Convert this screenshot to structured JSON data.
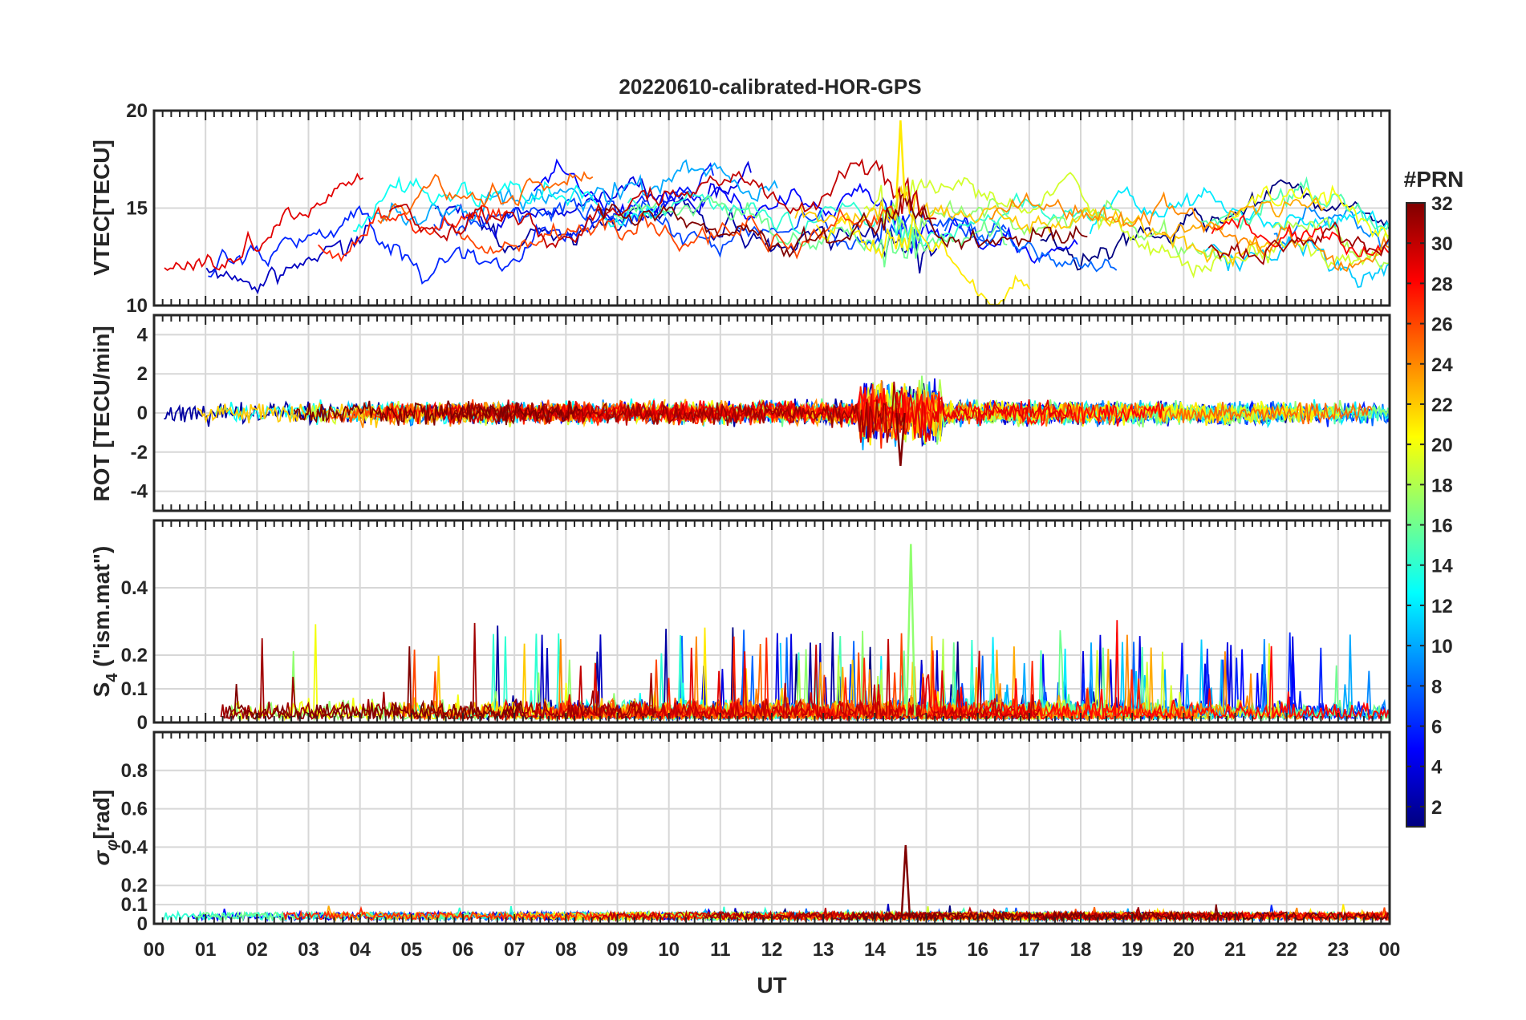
{
  "figure": {
    "title": "20220610-calibrated-HOR-GPS",
    "xlabel": "UT",
    "colorbar": {
      "label": "#PRN",
      "min": 1,
      "max": 32,
      "ticks": [
        "2",
        "4",
        "6",
        "8",
        "10",
        "12",
        "14",
        "16",
        "18",
        "20",
        "22",
        "24",
        "26",
        "28",
        "30",
        "32"
      ],
      "colormap": "jet"
    }
  },
  "chart_data": [
    {
      "type": "line",
      "panel": "vtec",
      "title": "20220610-calibrated-HOR-GPS",
      "ylabel": "VTEC[TECU]",
      "xlabel": "",
      "xlim": [
        0,
        24
      ],
      "ylim": [
        10,
        20
      ],
      "yticks": [
        "10",
        "15",
        "20"
      ],
      "grid": true,
      "series_summary": {
        "prn_count": 32,
        "baseline_profile_x": [
          0,
          2,
          4,
          6,
          8,
          10,
          12,
          14,
          16,
          18,
          20,
          22,
          24
        ],
        "baseline_profile_y": [
          11.5,
          12.5,
          14.0,
          14.5,
          15.0,
          15.0,
          15.0,
          14.8,
          14.0,
          14.0,
          13.5,
          13.5,
          13.0
        ],
        "peak": {
          "x": 14.5,
          "y": 19.5
        }
      }
    },
    {
      "type": "line",
      "panel": "rot",
      "ylabel": "ROT [TECU/min]",
      "xlabel": "",
      "xlim": [
        0,
        24
      ],
      "ylim": [
        -5,
        5
      ],
      "yticks": [
        "-4",
        "-2",
        "0",
        "2",
        "4"
      ],
      "grid": true,
      "series_summary": {
        "prn_count": 32,
        "typical_range": [
          -1,
          1
        ],
        "max_abs": {
          "x": 14.5,
          "y": -2.7
        }
      }
    },
    {
      "type": "line",
      "panel": "s4",
      "ylabel": "S4 (\"ism.mat\")",
      "ylabel_main": "S",
      "ylabel_sub": "4",
      "ylabel_rest": " (\"ism.mat\")",
      "xlabel": "",
      "xlim": [
        0,
        24
      ],
      "ylim": [
        0,
        0.6
      ],
      "yticks": [
        "0",
        "0.1",
        "0.2",
        "0.4"
      ],
      "grid": true,
      "series_summary": {
        "prn_count": 32,
        "typical_range": [
          0,
          0.1
        ],
        "peak": {
          "x": 14.7,
          "y": 0.53
        }
      }
    },
    {
      "type": "line",
      "panel": "sigma_phi",
      "ylabel": "σφ[rad]",
      "ylabel_main": "σ",
      "ylabel_sub": "φ",
      "ylabel_rest": "[rad]",
      "xlabel": "UT",
      "xlim": [
        0,
        24
      ],
      "ylim": [
        0,
        1
      ],
      "yticks": [
        "0",
        "0.1",
        "0.2",
        "0.4",
        "0.6",
        "0.8"
      ],
      "xticks": [
        "00",
        "01",
        "02",
        "03",
        "04",
        "05",
        "06",
        "07",
        "08",
        "09",
        "10",
        "11",
        "12",
        "13",
        "14",
        "15",
        "16",
        "17",
        "18",
        "19",
        "20",
        "21",
        "22",
        "23",
        "00"
      ],
      "grid": true,
      "series_summary": {
        "prn_count": 32,
        "typical_range": [
          0.02,
          0.06
        ],
        "peak": {
          "x": 14.6,
          "y": 0.41
        }
      }
    }
  ]
}
